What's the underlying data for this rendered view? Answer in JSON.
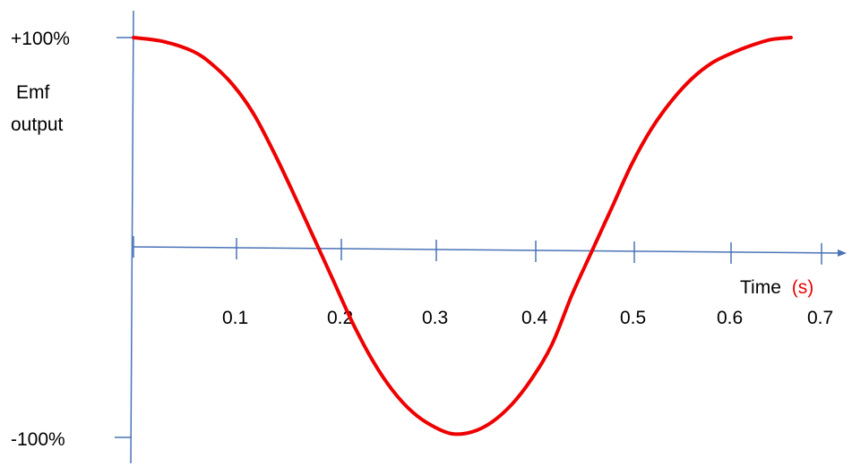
{
  "chart_data": {
    "type": "line",
    "title": "",
    "ylabel_lines": [
      "Emf",
      "output"
    ],
    "xlabel": "Time",
    "xlabel_unit": "(s)",
    "y_tick_labels": [
      {
        "value": 100,
        "label": "+100%"
      },
      {
        "value": -100,
        "label": "-100%"
      }
    ],
    "x_ticks": [
      0.1,
      0.2,
      0.3,
      0.4,
      0.5,
      0.6,
      0.7
    ],
    "x_tick_labels": [
      "0.1",
      "0.2",
      "0.3",
      "0.4",
      "0.5",
      "0.6",
      "0.7"
    ],
    "xlim": [
      0,
      0.72
    ],
    "ylim": [
      -100,
      100
    ],
    "grid": false,
    "series": [
      {
        "color": "#ee0000",
        "x": [
          0.0,
          0.03,
          0.06,
          0.08,
          0.1,
          0.12,
          0.14,
          0.16,
          0.18,
          0.2,
          0.22,
          0.24,
          0.26,
          0.28,
          0.3,
          0.32,
          0.34,
          0.36,
          0.38,
          0.4,
          0.42,
          0.44,
          0.46,
          0.48,
          0.5,
          0.52,
          0.54,
          0.56,
          0.58,
          0.6,
          0.62,
          0.64,
          0.66
        ],
        "y": [
          100,
          98,
          93,
          86,
          76,
          62,
          43,
          22,
          0,
          -22,
          -44,
          -63,
          -78,
          -89,
          -96,
          -100,
          -99,
          -94,
          -85,
          -72,
          -55,
          -30,
          -8,
          14,
          36,
          54,
          68,
          79,
          87,
          92,
          96,
          99,
          100
        ]
      }
    ],
    "colors": {
      "axis": "#4a73b6",
      "series": "#ee0000",
      "unit_text": "#ee0000",
      "text": "#000000"
    }
  }
}
